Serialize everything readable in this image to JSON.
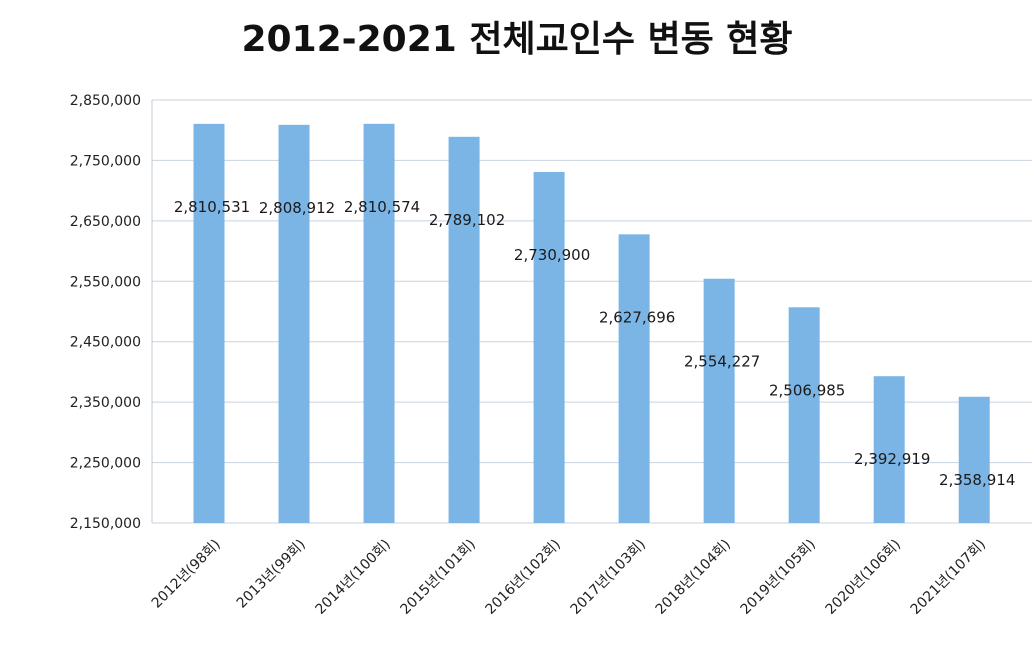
{
  "chart_data": {
    "type": "bar",
    "title": "2012-2021 전체교인수 변동 현황",
    "categories": [
      "2012년(98회)",
      "2013년(99회)",
      "2014년(100회)",
      "2015년(101회)",
      "2016년(102회)",
      "2017년(103회)",
      "2018년(104회)",
      "2019년(105회)",
      "2020년(106회)",
      "2021년(107회)"
    ],
    "values": [
      2810531,
      2808912,
      2810574,
      2789102,
      2730900,
      2627696,
      2554227,
      2506985,
      2392919,
      2358914
    ],
    "data_labels": [
      "2,810,531",
      "2,808,912",
      "2,810,574",
      "2,789,102",
      "2,730,900",
      "2,627,696",
      "2,554,227",
      "2,506,985",
      "2,392,919",
      "2,358,914"
    ],
    "y_ticks": [
      "2,150,000",
      "2,250,000",
      "2,350,000",
      "2,450,000",
      "2,550,000",
      "2,650,000",
      "2,750,000",
      "2,850,000"
    ],
    "ylim": [
      2150000,
      2850000
    ],
    "xlabel": "",
    "ylabel": "",
    "grid": true,
    "legend": "none",
    "bar_color": "#7ab5e6",
    "grid_color": "#c9d3e0"
  }
}
